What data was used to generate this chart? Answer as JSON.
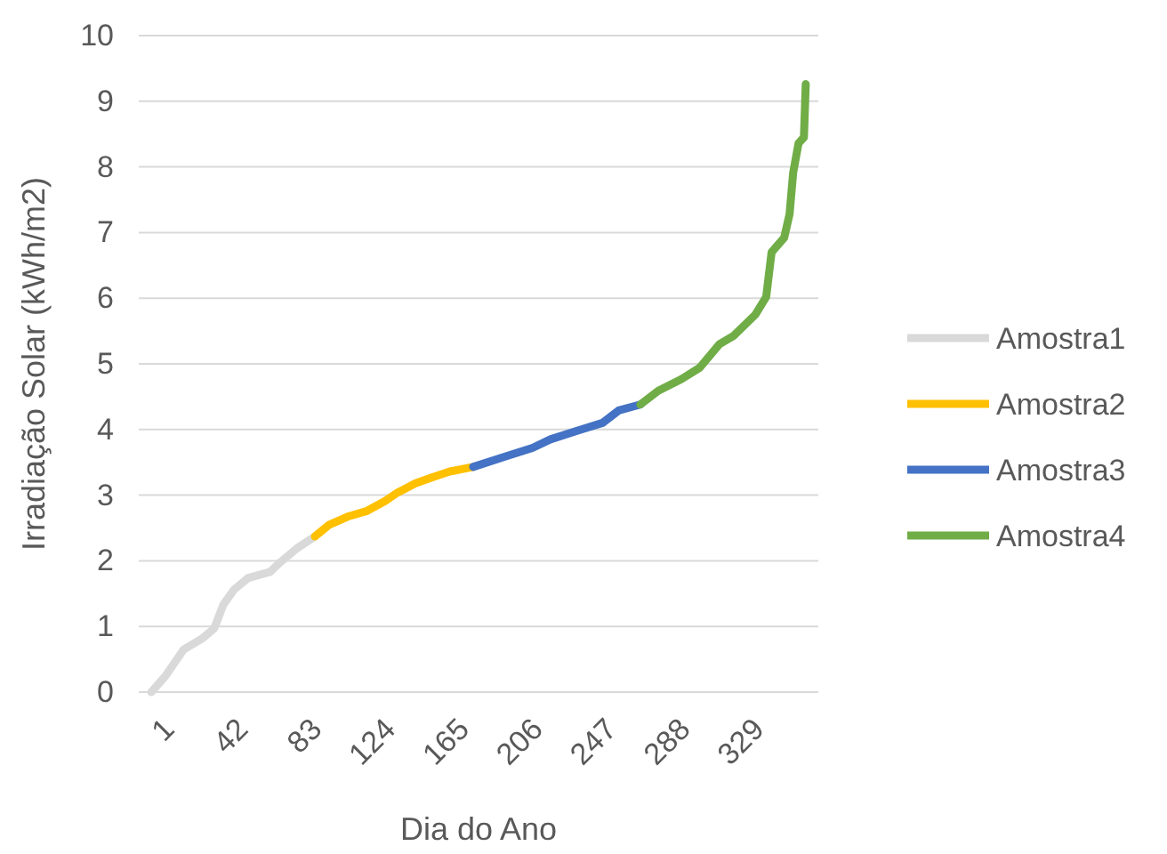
{
  "chart_data": {
    "type": "line",
    "xlabel": "Dia do Ano",
    "ylabel": "Irradiação Solar (kWh/m2)",
    "xlim": [
      -6,
      372
    ],
    "xticks": [
      1,
      42,
      83,
      124,
      165,
      206,
      247,
      288,
      329
    ],
    "ylim": [
      0,
      10
    ],
    "yticks": [
      0,
      1,
      2,
      3,
      4,
      5,
      6,
      7,
      8,
      9,
      10
    ],
    "grid": "y",
    "legend": "right",
    "line_style": "solid",
    "marker": "none",
    "series": [
      {
        "name": "Amostra1",
        "color": "#d9d9d9",
        "x": [
          1,
          9,
          19,
          29,
          36,
          41,
          47,
          55,
          67,
          72,
          82,
          92
        ],
        "values": [
          0,
          0.25,
          0.65,
          0.81,
          0.97,
          1.33,
          1.56,
          1.74,
          1.83,
          1.96,
          2.19,
          2.37
        ]
      },
      {
        "name": "Amostra2",
        "color": "#ffc000",
        "x": [
          92,
          100,
          111,
          121,
          131,
          138,
          148,
          157,
          167,
          180
        ],
        "values": [
          2.37,
          2.55,
          2.68,
          2.76,
          2.91,
          3.04,
          3.18,
          3.27,
          3.36,
          3.43
        ]
      },
      {
        "name": "Amostra3",
        "color": "#4472c4",
        "x": [
          180,
          197,
          213,
          223,
          239,
          252,
          261,
          273
        ],
        "values": [
          3.43,
          3.58,
          3.72,
          3.85,
          3.99,
          4.1,
          4.29,
          4.38
        ]
      },
      {
        "name": "Amostra4",
        "color": "#70ad47",
        "x": [
          273,
          283,
          296,
          306,
          317,
          325,
          337,
          343,
          346,
          353,
          356,
          358,
          361,
          364,
          365
        ],
        "values": [
          4.38,
          4.59,
          4.77,
          4.94,
          5.3,
          5.43,
          5.75,
          6.02,
          6.7,
          6.92,
          7.28,
          7.91,
          8.36,
          8.45,
          9.26
        ]
      }
    ]
  }
}
